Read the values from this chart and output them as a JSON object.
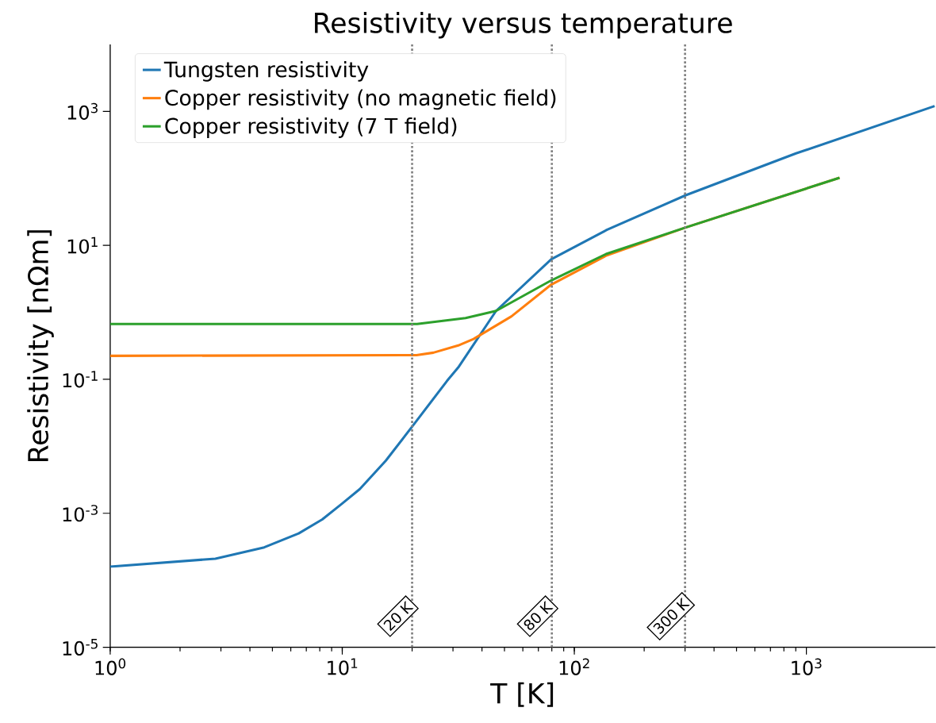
{
  "chart_data": {
    "type": "line",
    "title": "Resistivity versus temperature",
    "xlabel": "T [K]",
    "ylabel": "Resistivity [nΩm]",
    "log": "xy",
    "xlim": [
      1,
      3600
    ],
    "ylim": [
      1e-05,
      10000
    ],
    "xticks": [
      {
        "value": 1,
        "label": "10$^{0}$"
      },
      {
        "value": 10,
        "label": "10$^{1}$"
      },
      {
        "value": 100,
        "label": "10$^{2}$"
      },
      {
        "value": 1000,
        "label": "10$^{3}$"
      }
    ],
    "yticks": [
      {
        "value": 1e-05,
        "label": "10$^{-5}$"
      },
      {
        "value": 0.001,
        "label": "10$^{-3}$"
      },
      {
        "value": 0.1,
        "label": "10$^{-1}$"
      },
      {
        "value": 10,
        "label": "10$^{1}$"
      },
      {
        "value": 1000,
        "label": "10$^{3}$"
      }
    ],
    "legend": "top left",
    "series": [
      {
        "name": "Tungsten resistivity",
        "color": "#1f77b4",
        "x": [
          1,
          2.84,
          4.61,
          6.49,
          8.2,
          10,
          11.9,
          15.4,
          20.3,
          28.3,
          31.6,
          46,
          79.6,
          138,
          302,
          902,
          3570
        ],
        "values": [
          0.00016,
          0.00021,
          0.00031,
          0.0005,
          0.00081,
          0.0014,
          0.0023,
          0.0061,
          0.021,
          0.095,
          0.15,
          1.05,
          6.2,
          17,
          56,
          236,
          1200
        ]
      },
      {
        "name": "Copper resistivity (no magnetic field)",
        "color": "#ff7f0e",
        "x": [
          1,
          20.9,
          24.7,
          31.6,
          36.8,
          53.6,
          79.6,
          138,
          302,
          1390
        ],
        "values": [
          0.224,
          0.23,
          0.25,
          0.32,
          0.4,
          0.87,
          2.6,
          7.1,
          18.5,
          102
        ]
      },
      {
        "name": "Copper resistivity (7 T field)",
        "color": "#2ca02c",
        "x": [
          1,
          21,
          34,
          46,
          79.6,
          138,
          302,
          1390
        ],
        "values": [
          0.67,
          0.67,
          0.82,
          1.05,
          3.0,
          7.5,
          18.5,
          102
        ]
      }
    ],
    "ref_lines": [
      {
        "axis": "x",
        "value": 20,
        "label": "20 K",
        "color": "#808080",
        "line_style": "dotted"
      },
      {
        "axis": "x",
        "value": 80,
        "label": "80 K",
        "color": "#808080",
        "line_style": "dotted"
      },
      {
        "axis": "x",
        "value": 300,
        "label": "300 K",
        "color": "#808080",
        "line_style": "dotted"
      }
    ]
  }
}
